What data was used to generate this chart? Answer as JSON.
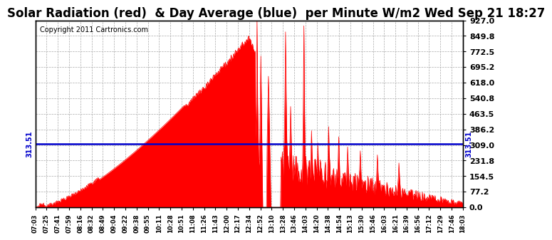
{
  "title": "Solar Radiation (red)  & Day Average (blue)  per Minute W/m2 Wed Sep 21 18:27",
  "copyright": "Copyright 2011 Cartronics.com",
  "ymin": 0.0,
  "ymax": 927.0,
  "yticks": [
    0.0,
    77.2,
    154.5,
    231.8,
    309.0,
    386.2,
    463.5,
    540.8,
    618.0,
    695.2,
    772.5,
    849.8,
    927.0
  ],
  "day_average": 313.51,
  "day_average_label": "313.51",
  "fill_color": "#ff0000",
  "line_color": "#ff0000",
  "avg_line_color": "#0000cc",
  "background_color": "#ffffff",
  "grid_color": "#aaaaaa",
  "title_fontsize": 12,
  "copyright_fontsize": 7,
  "tick_fontsize": 8,
  "x_tick_labels": [
    "07:03",
    "07:25",
    "07:41",
    "07:59",
    "08:16",
    "08:32",
    "08:49",
    "09:04",
    "09:22",
    "09:38",
    "09:55",
    "10:11",
    "10:28",
    "10:51",
    "11:08",
    "11:26",
    "11:43",
    "12:00",
    "12:17",
    "12:34",
    "12:52",
    "13:10",
    "13:28",
    "13:46",
    "14:03",
    "14:20",
    "14:38",
    "14:54",
    "15:13",
    "15:30",
    "15:46",
    "16:03",
    "16:21",
    "16:39",
    "16:56",
    "17:12",
    "17:29",
    "17:46",
    "18:03"
  ],
  "n_points": 676
}
